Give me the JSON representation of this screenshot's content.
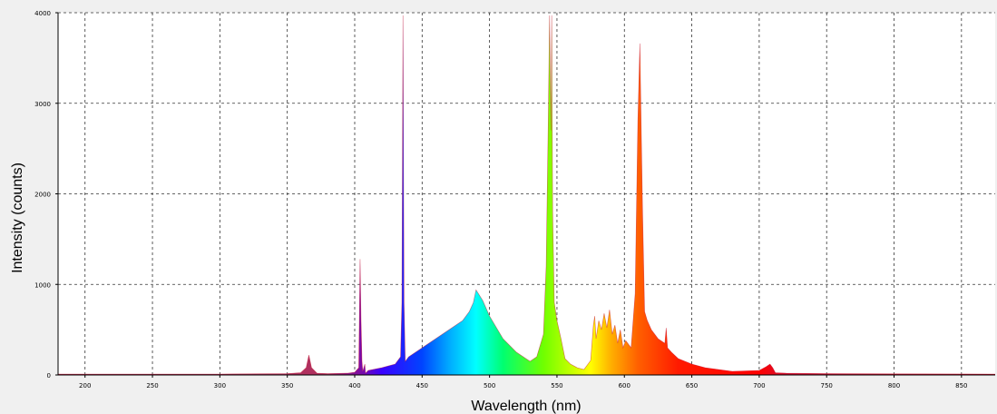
{
  "chart_data": {
    "type": "area",
    "title": "",
    "xlabel": "Wavelength (nm)",
    "ylabel": "Intensity (counts)",
    "xlim": [
      180,
      875
    ],
    "ylim": [
      0,
      4000
    ],
    "x_ticks": [
      200,
      250,
      300,
      350,
      400,
      450,
      500,
      550,
      600,
      650,
      700,
      750,
      800,
      850
    ],
    "y_ticks": [
      0,
      1000,
      2000,
      3000,
      4000
    ],
    "grid": true,
    "grid_style": "dashed",
    "fill": "wavelength-rainbow",
    "line_color": "#c8102e",
    "series": [
      {
        "x": [
          180,
          250,
          300,
          350,
          360,
          364,
          366,
          368,
          372,
          380,
          395,
          400,
          403,
          404,
          404.7,
          405.4,
          406,
          407.5,
          408,
          408.7,
          410,
          420,
          430,
          434,
          435,
          435.8,
          436.6,
          437.5,
          440,
          450,
          460,
          470,
          480,
          485,
          488,
          490,
          495,
          500,
          510,
          520,
          530,
          535,
          540,
          542,
          543.5,
          544.5,
          545.5,
          546.1,
          546.8,
          548,
          550,
          553,
          556,
          560,
          565,
          570,
          575,
          577,
          578,
          579,
          581,
          583,
          585,
          587,
          589,
          591,
          593,
          595,
          597,
          599,
          601,
          605,
          608,
          610,
          611.5,
          612.5,
          613.5,
          615,
          617,
          620,
          625,
          630,
          631,
          632,
          635,
          640,
          650,
          660,
          680,
          700,
          705,
          708,
          710,
          712,
          720,
          750,
          800,
          875
        ],
        "y": [
          10,
          10,
          10,
          15,
          25,
          80,
          220,
          80,
          20,
          15,
          20,
          30,
          80,
          1280,
          600,
          150,
          40,
          120,
          20,
          30,
          50,
          80,
          120,
          200,
          800,
          3970,
          800,
          150,
          200,
          300,
          400,
          500,
          600,
          700,
          800,
          940,
          820,
          650,
          400,
          250,
          150,
          200,
          450,
          1200,
          2750,
          3970,
          2700,
          3970,
          1800,
          800,
          600,
          400,
          180,
          120,
          80,
          60,
          160,
          550,
          650,
          400,
          600,
          500,
          680,
          520,
          720,
          450,
          550,
          350,
          500,
          300,
          380,
          300,
          900,
          2800,
          3660,
          2700,
          1800,
          700,
          600,
          500,
          400,
          350,
          520,
          300,
          250,
          180,
          120,
          80,
          40,
          50,
          90,
          120,
          80,
          25,
          20,
          15,
          12,
          10
        ]
      }
    ]
  }
}
